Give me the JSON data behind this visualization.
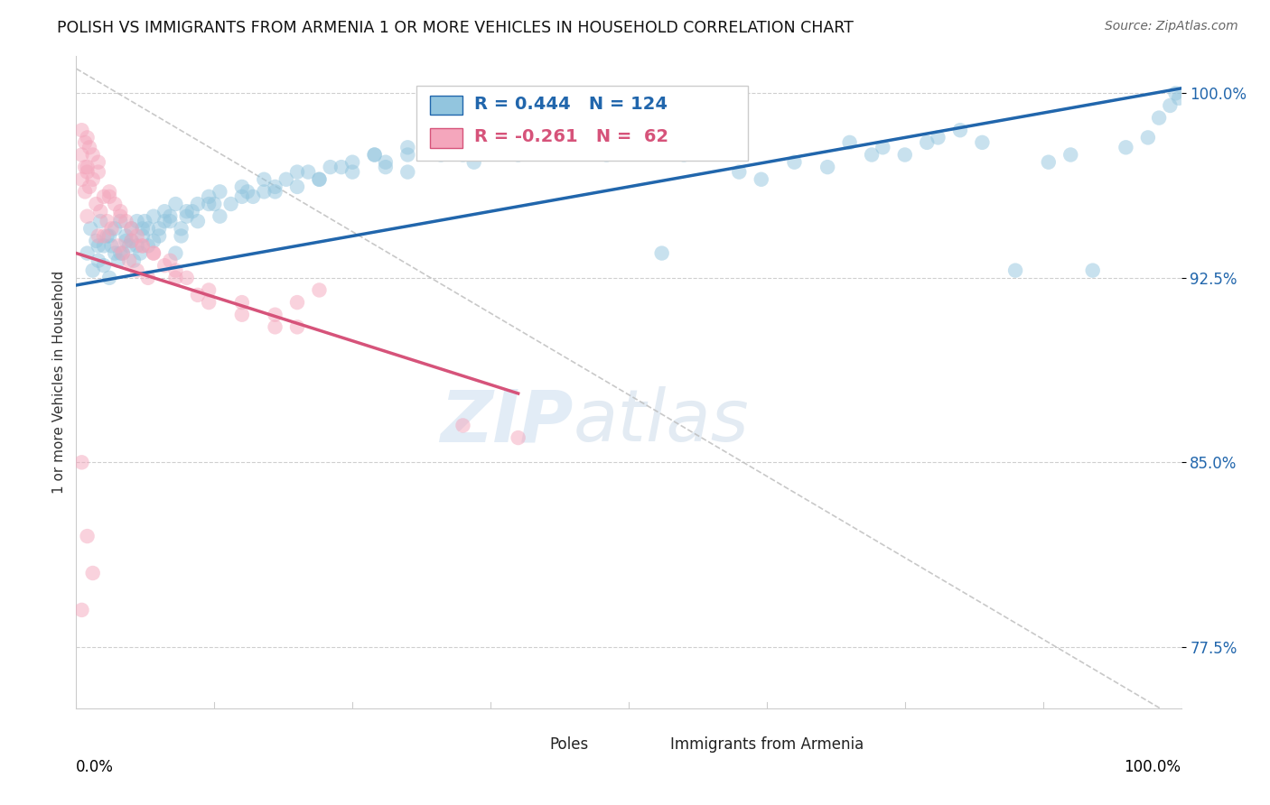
{
  "title": "POLISH VS IMMIGRANTS FROM ARMENIA 1 OR MORE VEHICLES IN HOUSEHOLD CORRELATION CHART",
  "source": "Source: ZipAtlas.com",
  "ylabel": "1 or more Vehicles in Household",
  "xmin": 0.0,
  "xmax": 100.0,
  "ymin": 75.0,
  "ymax": 101.5,
  "yticks": [
    77.5,
    85.0,
    92.5,
    100.0
  ],
  "dashed_line_color": "#bbbbbb",
  "watermark_zip": "ZIP",
  "watermark_atlas": "atlas",
  "blue_color": "#92c5de",
  "blue_line_color": "#2166ac",
  "pink_color": "#f4a6bc",
  "pink_line_color": "#d6537a",
  "blue_trend_x0": 0.0,
  "blue_trend_y0": 92.2,
  "blue_trend_x1": 100.0,
  "blue_trend_y1": 100.2,
  "pink_trend_x0": 0.0,
  "pink_trend_y0": 93.5,
  "pink_trend_x1": 40.0,
  "pink_trend_y1": 87.8,
  "ref_line_x0": 0.0,
  "ref_line_y0": 101.0,
  "ref_line_x1": 100.0,
  "ref_line_y1": 74.5,
  "blue_points": [
    [
      1.0,
      93.5
    ],
    [
      1.3,
      94.5
    ],
    [
      1.5,
      92.8
    ],
    [
      1.8,
      94.0
    ],
    [
      2.0,
      93.2
    ],
    [
      2.2,
      94.8
    ],
    [
      2.5,
      93.8
    ],
    [
      2.8,
      94.2
    ],
    [
      3.0,
      92.5
    ],
    [
      3.2,
      93.8
    ],
    [
      3.5,
      94.5
    ],
    [
      3.8,
      93.2
    ],
    [
      4.0,
      94.8
    ],
    [
      4.2,
      93.5
    ],
    [
      4.5,
      94.2
    ],
    [
      4.8,
      93.8
    ],
    [
      5.0,
      94.5
    ],
    [
      5.2,
      93.2
    ],
    [
      5.5,
      94.8
    ],
    [
      5.8,
      93.5
    ],
    [
      6.0,
      94.2
    ],
    [
      6.2,
      94.8
    ],
    [
      6.5,
      93.8
    ],
    [
      7.0,
      95.0
    ],
    [
      7.5,
      94.5
    ],
    [
      8.0,
      95.2
    ],
    [
      8.5,
      94.8
    ],
    [
      9.0,
      95.5
    ],
    [
      9.5,
      94.2
    ],
    [
      10.0,
      95.0
    ],
    [
      11.0,
      95.5
    ],
    [
      12.0,
      95.8
    ],
    [
      13.0,
      96.0
    ],
    [
      14.0,
      95.5
    ],
    [
      15.0,
      96.2
    ],
    [
      16.0,
      95.8
    ],
    [
      17.0,
      96.5
    ],
    [
      18.0,
      96.0
    ],
    [
      19.0,
      96.5
    ],
    [
      20.0,
      96.8
    ],
    [
      22.0,
      96.5
    ],
    [
      23.0,
      97.0
    ],
    [
      25.0,
      97.2
    ],
    [
      27.0,
      97.5
    ],
    [
      28.0,
      97.0
    ],
    [
      30.0,
      97.5
    ],
    [
      32.0,
      97.8
    ],
    [
      35.0,
      97.5
    ],
    [
      38.0,
      97.8
    ],
    [
      40.0,
      97.5
    ],
    [
      42.0,
      98.0
    ],
    [
      45.0,
      97.8
    ],
    [
      48.0,
      97.5
    ],
    [
      50.0,
      97.8
    ],
    [
      53.0,
      93.5
    ],
    [
      55.0,
      97.5
    ],
    [
      58.0,
      98.0
    ],
    [
      60.0,
      96.8
    ],
    [
      62.0,
      96.5
    ],
    [
      65.0,
      97.2
    ],
    [
      68.0,
      97.0
    ],
    [
      70.0,
      98.0
    ],
    [
      72.0,
      97.5
    ],
    [
      73.0,
      97.8
    ],
    [
      75.0,
      97.5
    ],
    [
      77.0,
      98.0
    ],
    [
      78.0,
      98.2
    ],
    [
      80.0,
      98.5
    ],
    [
      82.0,
      98.0
    ],
    [
      85.0,
      92.8
    ],
    [
      88.0,
      97.2
    ],
    [
      90.0,
      97.5
    ],
    [
      92.0,
      92.8
    ],
    [
      95.0,
      97.8
    ],
    [
      97.0,
      98.2
    ],
    [
      98.0,
      99.0
    ],
    [
      99.0,
      99.5
    ],
    [
      99.5,
      100.0
    ],
    [
      99.8,
      99.8
    ],
    [
      2.0,
      93.8
    ],
    [
      3.0,
      94.2
    ],
    [
      4.0,
      93.5
    ],
    [
      5.0,
      94.0
    ],
    [
      6.0,
      94.5
    ],
    [
      7.0,
      94.0
    ],
    [
      8.0,
      94.8
    ],
    [
      9.0,
      93.5
    ],
    [
      10.0,
      95.2
    ],
    [
      11.0,
      94.8
    ],
    [
      12.0,
      95.5
    ],
    [
      13.0,
      95.0
    ],
    [
      15.0,
      95.8
    ],
    [
      17.0,
      96.0
    ],
    [
      20.0,
      96.2
    ],
    [
      22.0,
      96.5
    ],
    [
      25.0,
      96.8
    ],
    [
      28.0,
      97.2
    ],
    [
      30.0,
      96.8
    ],
    [
      33.0,
      97.5
    ],
    [
      36.0,
      97.2
    ],
    [
      40.0,
      98.0
    ],
    [
      44.0,
      97.8
    ],
    [
      48.0,
      98.2
    ],
    [
      2.5,
      93.0
    ],
    [
      3.5,
      93.5
    ],
    [
      4.5,
      94.0
    ],
    [
      5.5,
      93.8
    ],
    [
      6.5,
      94.5
    ],
    [
      7.5,
      94.2
    ],
    [
      8.5,
      95.0
    ],
    [
      9.5,
      94.5
    ],
    [
      10.5,
      95.2
    ],
    [
      12.5,
      95.5
    ],
    [
      15.5,
      96.0
    ],
    [
      18.0,
      96.2
    ],
    [
      21.0,
      96.8
    ],
    [
      24.0,
      97.0
    ],
    [
      27.0,
      97.5
    ],
    [
      30.0,
      97.8
    ],
    [
      34.0,
      98.0
    ],
    [
      38.0,
      97.8
    ]
  ],
  "pink_points": [
    [
      0.5,
      98.5
    ],
    [
      0.8,
      98.0
    ],
    [
      1.0,
      98.2
    ],
    [
      0.5,
      97.5
    ],
    [
      1.2,
      97.8
    ],
    [
      0.8,
      97.0
    ],
    [
      1.5,
      97.5
    ],
    [
      1.0,
      96.8
    ],
    [
      2.0,
      97.2
    ],
    [
      0.5,
      96.5
    ],
    [
      1.0,
      97.0
    ],
    [
      1.5,
      96.5
    ],
    [
      0.8,
      96.0
    ],
    [
      2.0,
      96.8
    ],
    [
      1.2,
      96.2
    ],
    [
      2.5,
      95.8
    ],
    [
      1.8,
      95.5
    ],
    [
      3.0,
      96.0
    ],
    [
      2.2,
      95.2
    ],
    [
      3.5,
      95.5
    ],
    [
      1.0,
      95.0
    ],
    [
      2.8,
      94.8
    ],
    [
      4.0,
      95.2
    ],
    [
      3.2,
      94.5
    ],
    [
      4.5,
      94.8
    ],
    [
      2.0,
      94.2
    ],
    [
      5.0,
      94.5
    ],
    [
      3.8,
      93.8
    ],
    [
      5.5,
      94.2
    ],
    [
      4.2,
      93.5
    ],
    [
      6.0,
      93.8
    ],
    [
      4.8,
      93.2
    ],
    [
      7.0,
      93.5
    ],
    [
      5.5,
      92.8
    ],
    [
      8.0,
      93.0
    ],
    [
      6.5,
      92.5
    ],
    [
      9.0,
      92.8
    ],
    [
      10.0,
      92.5
    ],
    [
      12.0,
      92.0
    ],
    [
      15.0,
      91.5
    ],
    [
      18.0,
      91.0
    ],
    [
      20.0,
      90.5
    ],
    [
      22.0,
      92.0
    ],
    [
      8.5,
      93.2
    ],
    [
      0.5,
      85.0
    ],
    [
      1.0,
      82.0
    ],
    [
      1.5,
      80.5
    ],
    [
      0.5,
      79.0
    ],
    [
      35.0,
      86.5
    ],
    [
      40.0,
      86.0
    ],
    [
      12.0,
      91.5
    ],
    [
      15.0,
      91.0
    ],
    [
      18.0,
      90.5
    ],
    [
      3.0,
      95.8
    ],
    [
      5.0,
      94.0
    ],
    [
      7.0,
      93.5
    ],
    [
      9.0,
      92.5
    ],
    [
      11.0,
      91.8
    ],
    [
      2.5,
      94.2
    ],
    [
      4.0,
      95.0
    ],
    [
      6.0,
      93.8
    ],
    [
      20.0,
      91.5
    ]
  ]
}
